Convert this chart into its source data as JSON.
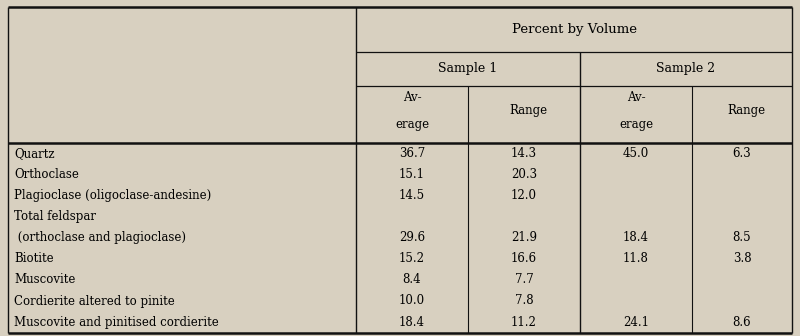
{
  "rows": [
    [
      "Quartz",
      "36.7",
      "14.3",
      "45.0",
      "6.3"
    ],
    [
      "Orthoclase",
      "15.1",
      "20.3",
      "",
      ""
    ],
    [
      "Plagioclase (oligoclase-andesine)",
      "14.5",
      "12.0",
      "",
      ""
    ],
    [
      "Total feldspar",
      "",
      "",
      "",
      ""
    ],
    [
      " (orthoclase and plagioclase)",
      "29.6",
      "21.9",
      "18.4",
      "8.5"
    ],
    [
      "Biotite",
      "15.2",
      "16.6",
      "11.8",
      "3.8"
    ],
    [
      "Muscovite",
      " 8.4",
      " 7.7",
      "",
      ""
    ],
    [
      "Cordierite altered to pinite",
      "10.0",
      " 7.8",
      "",
      ""
    ],
    [
      "Muscovite and pinitised cordierite",
      "18.4",
      "11.2",
      "24.1",
      "8.6"
    ]
  ],
  "bg_color": "#d8d0c0",
  "line_color": "#111111",
  "font_size": 8.5,
  "header_font_size": 9
}
